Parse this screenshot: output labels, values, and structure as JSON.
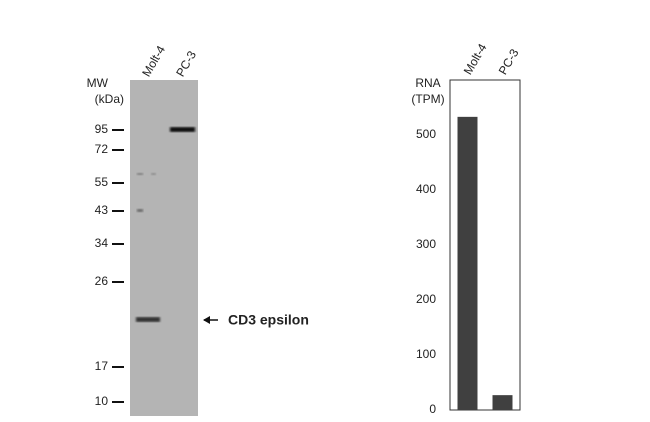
{
  "blot": {
    "mw_label": "MW",
    "mw_unit": "(kDa)",
    "lanes": [
      "Molt-4",
      "PC-3"
    ],
    "markers": [
      "95",
      "72",
      "55",
      "43",
      "34",
      "26",
      "17",
      "10"
    ],
    "annotation": "CD3 epsilon"
  },
  "chart_data": {
    "type": "bar",
    "y_label": [
      "RNA",
      "(TPM)"
    ],
    "categories": [
      "Molt-4",
      "PC-3"
    ],
    "values": [
      533,
      27
    ],
    "color": "#404040",
    "ylim": [
      0,
      600
    ],
    "yticks": [
      0,
      100,
      200,
      300,
      400,
      500
    ]
  }
}
